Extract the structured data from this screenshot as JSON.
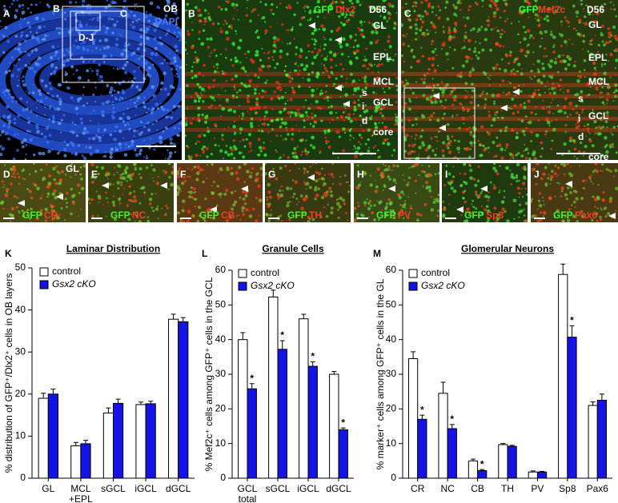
{
  "images": [
    {
      "label": "A",
      "texts": [
        "OB",
        "DAPI",
        "B",
        "C",
        "D-J"
      ]
    },
    {
      "label": "B",
      "texts": [
        "GFP",
        "Dlx2",
        "D56",
        "GL",
        "EPL",
        "MCL",
        "s",
        "GCL",
        "i",
        "d",
        "core"
      ]
    },
    {
      "label": "C",
      "texts": [
        "GFP",
        "Mef2c",
        "D56",
        "GL",
        "EPL",
        "MCL",
        "s",
        "GCL",
        "i",
        "d",
        "core"
      ]
    },
    {
      "label": "D",
      "texts": [
        "GL",
        "GFP",
        "CR"
      ]
    },
    {
      "label": "E",
      "texts": [
        "GFP",
        "NC"
      ]
    },
    {
      "label": "F",
      "texts": [
        "GFP",
        "CB"
      ]
    },
    {
      "label": "G",
      "texts": [
        "GFP",
        "TH"
      ]
    },
    {
      "label": "H",
      "texts": [
        "GFP",
        "PV"
      ]
    },
    {
      "label": "I",
      "texts": [
        "GFP",
        "Sp8"
      ]
    },
    {
      "label": "J",
      "texts": [
        "GFP",
        "Pax6"
      ]
    }
  ],
  "chart_data": [
    {
      "type": "bar",
      "label": "K",
      "title": "Laminar Distribution",
      "y_label": "% distribution of GFP⁺/Dlx2⁺ cells in OB layers",
      "categories": [
        "GL",
        "MCL\n+EPL",
        "sGCL",
        "iGCL",
        "dGCL"
      ],
      "series": [
        {
          "name": "control",
          "color": "#ffffff",
          "values": [
            19,
            7.7,
            15.5,
            17.5,
            37.8
          ],
          "errors": [
            1.2,
            0.8,
            1.2,
            0.6,
            1.2
          ]
        },
        {
          "name": "Gsx2 cKO",
          "color": "#1414e6",
          "values": [
            20,
            8.2,
            17.8,
            17.7,
            37.2
          ],
          "errors": [
            1.2,
            0.8,
            1.0,
            0.6,
            1.0
          ]
        }
      ],
      "ylim": [
        0,
        50
      ],
      "yticks": [
        0,
        10,
        20,
        30,
        40,
        50
      ]
    },
    {
      "type": "bar",
      "label": "L",
      "title": "Granule Cells",
      "y_label": "% Mef2c⁺ cells among GFP⁺ cells in the GCL",
      "categories": [
        "GCL\ntotal",
        "sGCL",
        "iGCL",
        "dGCL"
      ],
      "series": [
        {
          "name": "control",
          "color": "#ffffff",
          "values": [
            40,
            52.3,
            46,
            30
          ],
          "errors": [
            2,
            2,
            1.3,
            0.8
          ]
        },
        {
          "name": "Gsx2 cKO",
          "color": "#1414e6",
          "values": [
            25.8,
            37.2,
            32.3,
            14
          ],
          "errors": [
            1.5,
            2.5,
            1.3,
            0.5
          ],
          "markers": [
            "*",
            "*",
            "*",
            "*"
          ]
        }
      ],
      "ylim": [
        0,
        60
      ],
      "yticks": [
        0,
        10,
        20,
        30,
        40,
        50,
        60
      ]
    },
    {
      "type": "bar",
      "label": "M",
      "title": "Glomerular Neurons",
      "y_label": "% marker⁺ cells among GFP⁺ cells in the GL",
      "categories": [
        "CR",
        "NC",
        "CB",
        "TH",
        "PV",
        "Sp8",
        "Pax6"
      ],
      "series": [
        {
          "name": "control",
          "color": "#ffffff",
          "values": [
            34.5,
            24.5,
            5,
            9.7,
            1.8,
            58.8,
            21
          ],
          "errors": [
            2,
            3.2,
            0.5,
            0.3,
            0.3,
            3,
            1
          ]
        },
        {
          "name": "Gsx2 cKO",
          "color": "#1414e6",
          "values": [
            17,
            14.3,
            2.2,
            9.2,
            1.8,
            40.7,
            22.5
          ],
          "errors": [
            1.2,
            1.2,
            0.3,
            0.3,
            0.2,
            3.3,
            1.8
          ],
          "markers": [
            "*",
            "*",
            "*",
            null,
            null,
            "*",
            null
          ]
        }
      ],
      "ylim": [
        0,
        60
      ],
      "yticks": [
        0,
        10,
        20,
        30,
        40,
        50,
        60
      ]
    }
  ]
}
